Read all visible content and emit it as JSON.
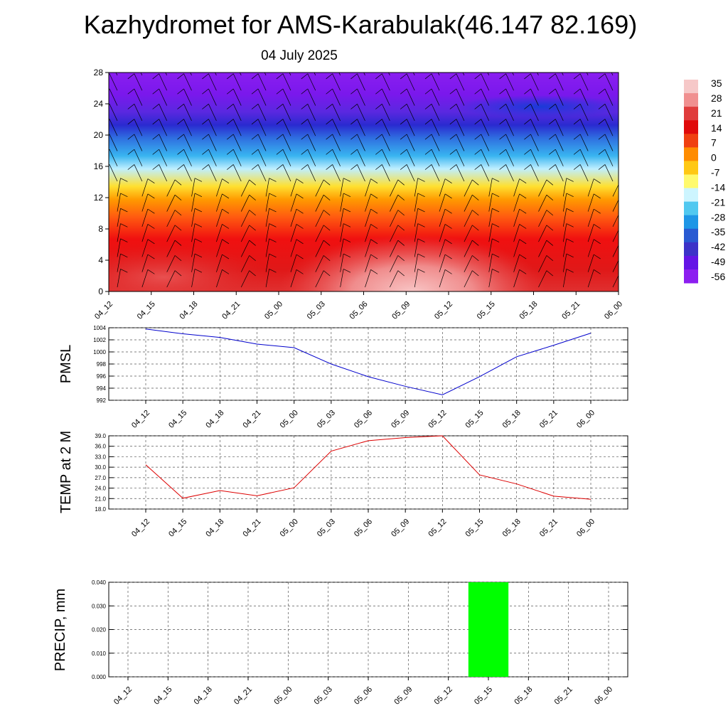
{
  "page": {
    "title": "Kazhydromet for AMS-Karabulak(46.147 82.169)",
    "subtitle": "04 July 2025"
  },
  "colors": {
    "pmsl_line": "#0000cc",
    "temp_line": "#dd0000",
    "precip_bar": "#00ff00",
    "grid": "#000000"
  },
  "chart_data": [
    {
      "type": "heatmap",
      "x_ticks": [
        "04_12",
        "04_15",
        "04_18",
        "04_21",
        "05_00",
        "05_03",
        "05_06",
        "05_09",
        "05_12",
        "05_15",
        "05_18",
        "05_21",
        "06_00"
      ],
      "y_ticks": [
        "0",
        "4",
        "8",
        "12",
        "16",
        "20",
        "24",
        "28"
      ],
      "ylim": [
        0,
        28
      ],
      "colorbar": {
        "labels": [
          "35",
          "28",
          "21",
          "14",
          "7",
          "0",
          "-7",
          "-14",
          "-21",
          "-28",
          "-35",
          "-42",
          "-49",
          "-56"
        ],
        "colors": [
          "#f6c8c8",
          "#f09090",
          "#e03c3c",
          "#e00a0a",
          "#f04010",
          "#ff8c00",
          "#ffc814",
          "#fffa6e",
          "#cdf5ff",
          "#50c8f0",
          "#1e96e6",
          "#285ad2",
          "#3c32c8",
          "#6414e6",
          "#8c1ef0"
        ]
      },
      "wind_barbs": true
    },
    {
      "type": "line",
      "ylabel": "PMSL",
      "x": [
        "04_12",
        "04_15",
        "04_18",
        "04_21",
        "05_00",
        "05_03",
        "05_06",
        "05_09",
        "05_12",
        "05_15",
        "05_18",
        "05_21",
        "06_00"
      ],
      "y_ticks": [
        "992",
        "994",
        "996",
        "998",
        "1000",
        "1002",
        "1004"
      ],
      "ylim": [
        992,
        1004
      ],
      "values": [
        1003.8,
        1003.0,
        1002.4,
        1001.3,
        1000.7,
        998.0,
        995.9,
        994.3,
        992.9,
        995.9,
        999.2,
        1001.1,
        1003.1
      ]
    },
    {
      "type": "line",
      "ylabel": "TEMP at 2 M",
      "x": [
        "04_12",
        "04_15",
        "04_18",
        "04_21",
        "05_00",
        "05_03",
        "05_06",
        "05_09",
        "05_12",
        "05_15",
        "05_18",
        "05_21",
        "06_00"
      ],
      "y_ticks": [
        "18.0",
        "21.0",
        "24.0",
        "27.0",
        "30.0",
        "33.0",
        "36.0",
        "39.0"
      ],
      "ylim": [
        18,
        39
      ],
      "values": [
        30.7,
        21.1,
        23.3,
        21.8,
        24.1,
        34.6,
        37.6,
        38.5,
        39.0,
        27.8,
        25.2,
        21.7,
        20.8
      ]
    },
    {
      "type": "bar",
      "ylabel": "PRECIP, mm",
      "x": [
        "04_12",
        "04_15",
        "04_18",
        "04_21",
        "05_00",
        "05_03",
        "05_06",
        "05_09",
        "05_12",
        "05_15",
        "05_18",
        "05_21",
        "06_00"
      ],
      "y_ticks": [
        "0.000",
        "0.010",
        "0.020",
        "0.030",
        "0.040"
      ],
      "ylim": [
        0,
        0.04
      ],
      "values": [
        0,
        0,
        0,
        0,
        0,
        0,
        0,
        0,
        0,
        0.04,
        0,
        0,
        0
      ]
    }
  ]
}
